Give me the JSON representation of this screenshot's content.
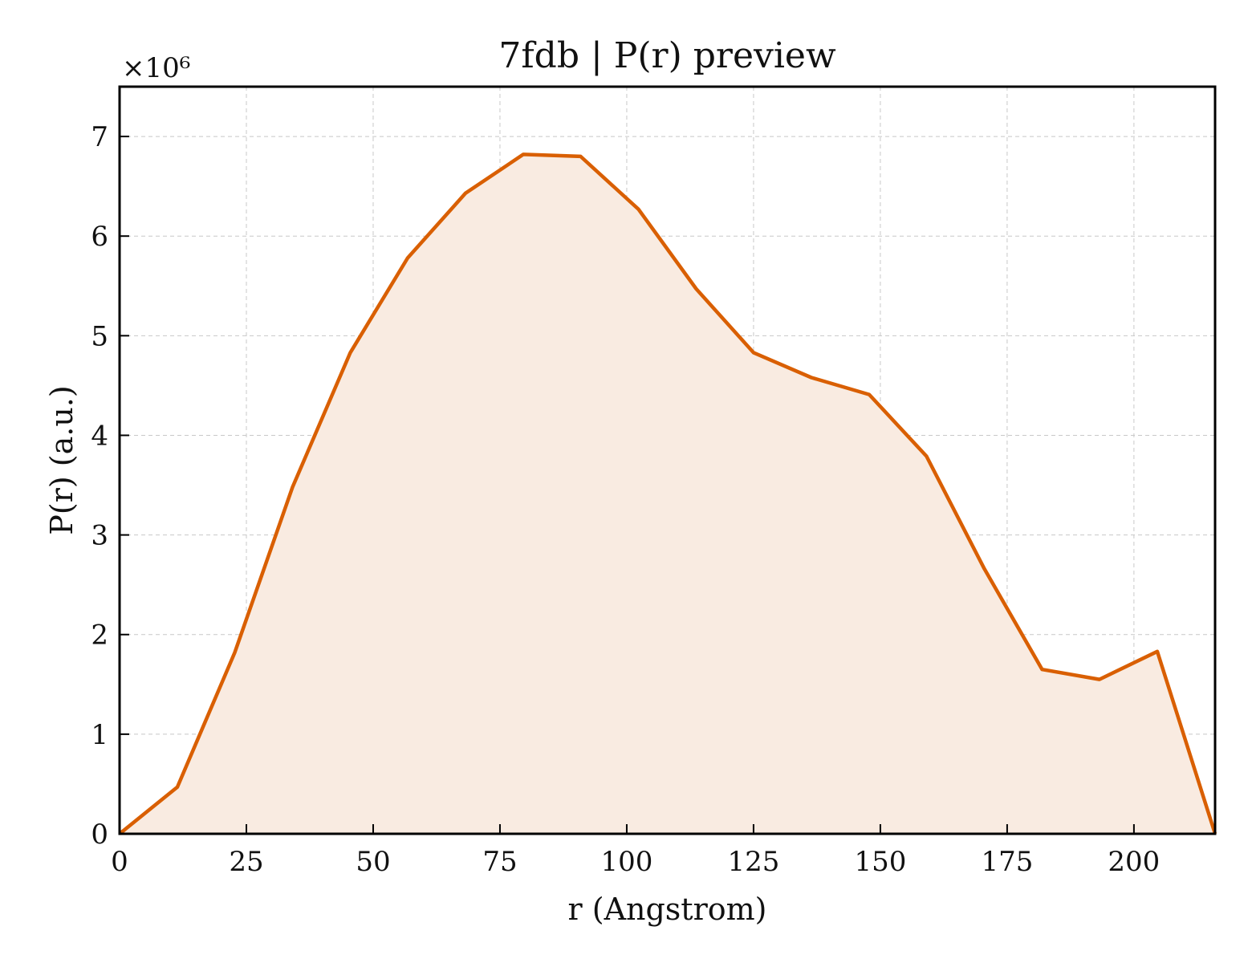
{
  "chart_data": {
    "type": "area",
    "title": "7fdb | P(r) preview",
    "xlabel": "r (Angstrom)",
    "ylabel": "P(r) (a.u.)",
    "y_multiplier": "×10⁶",
    "xlim": [
      0,
      216
    ],
    "ylim": [
      0,
      7.5
    ],
    "x_ticks": [
      0,
      25,
      50,
      75,
      100,
      125,
      150,
      175,
      200
    ],
    "y_ticks": [
      0,
      1,
      2,
      3,
      4,
      5,
      6,
      7
    ],
    "grid": true,
    "series": [
      {
        "x": [
          0,
          11.4,
          22.7,
          34.1,
          45.5,
          56.8,
          68.2,
          79.6,
          90.9,
          102.3,
          113.7,
          125.0,
          136.4,
          147.8,
          159.1,
          170.5,
          181.9,
          193.2,
          204.6,
          216.0
        ],
        "y": [
          0,
          0.47,
          1.82,
          3.48,
          4.83,
          5.78,
          6.43,
          6.82,
          6.8,
          6.27,
          5.47,
          4.83,
          4.58,
          4.41,
          3.79,
          2.66,
          1.65,
          1.55,
          1.83,
          0
        ]
      }
    ],
    "colors": {
      "line": "#d95f02",
      "fill": "#f9ebe1"
    }
  }
}
